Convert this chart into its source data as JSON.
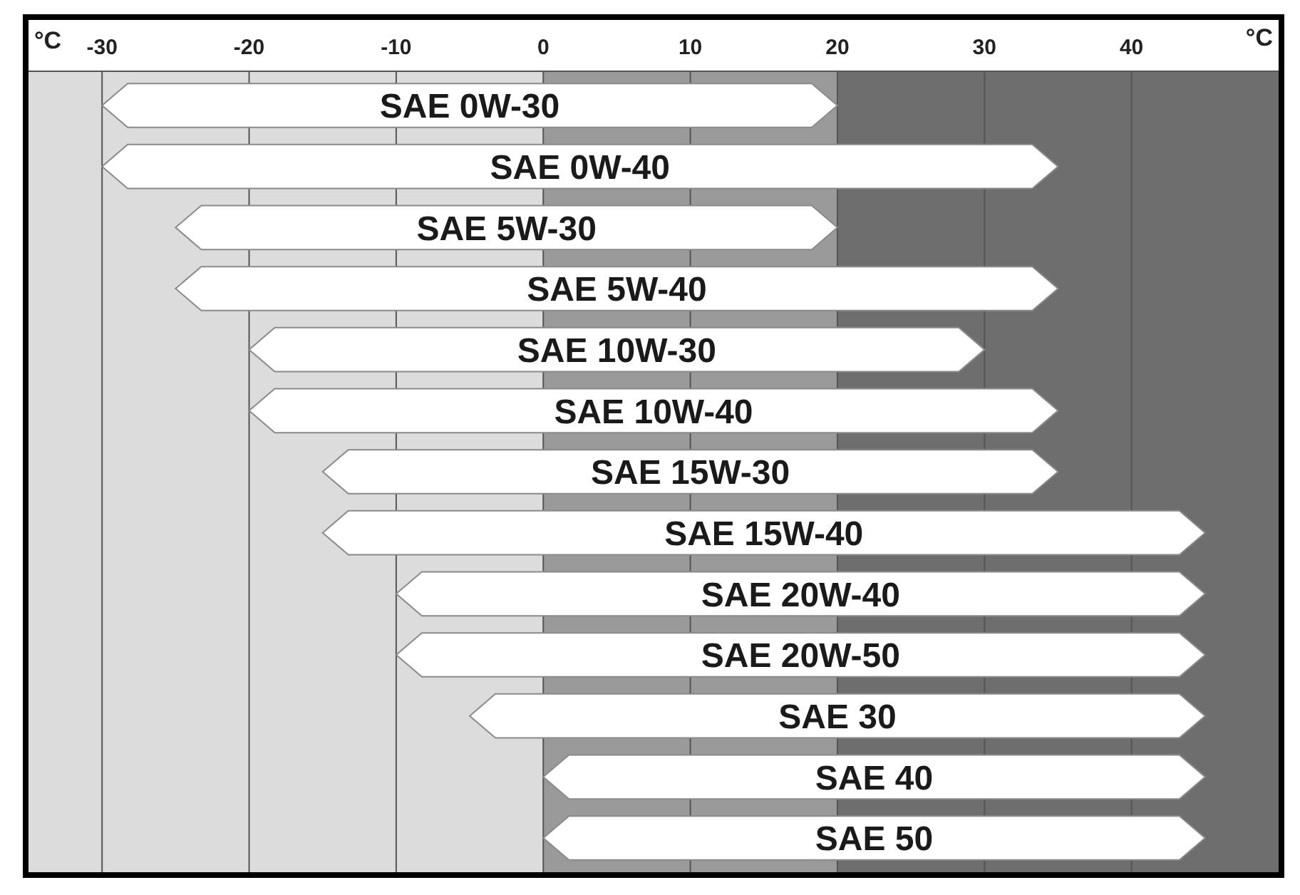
{
  "chart_data": {
    "type": "bar",
    "orientation": "horizontal",
    "xlabel": "°C",
    "categories": [
      "SAE 0W-30",
      "SAE 0W-40",
      "SAE 5W-30",
      "SAE 5W-40",
      "SAE 10W-30",
      "SAE 10W-40",
      "SAE 15W-30",
      "SAE 15W-40",
      "SAE 20W-40",
      "SAE 20W-50",
      "SAE 30",
      "SAE 40",
      "SAE 50"
    ],
    "base": [
      -30,
      -30,
      -25,
      -25,
      -20,
      -20,
      -15,
      -15,
      -10,
      -10,
      -5,
      0,
      0
    ],
    "values": [
      50,
      65,
      45,
      60,
      50,
      55,
      50,
      60,
      55,
      55,
      50,
      45,
      45
    ],
    "color": "#ffffff",
    "xlim": [
      -35,
      50
    ],
    "xticks": [
      -30,
      -20,
      -10,
      0,
      10,
      20,
      30,
      40
    ],
    "grid": "x",
    "bands": [
      {
        "axis": "x",
        "from": -35,
        "to": 0,
        "color": "#dcdcdc"
      },
      {
        "axis": "x",
        "from": 0,
        "to": 20,
        "color": "#9a9a9a"
      },
      {
        "axis": "x",
        "from": 20,
        "to": 50,
        "color": "#6e6e6e"
      }
    ]
  }
}
